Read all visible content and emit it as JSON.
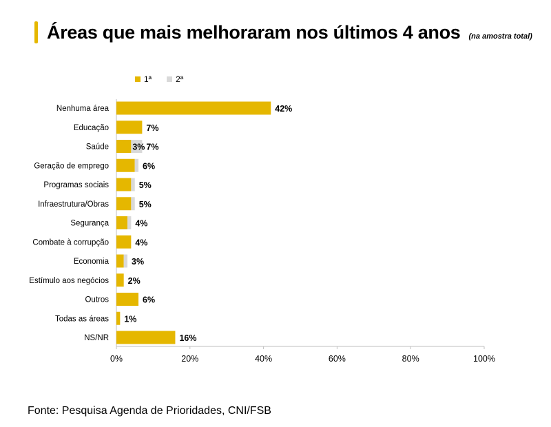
{
  "title": "Áreas que mais melhoraram nos últimos 4 anos",
  "subtitle": "(na amostra total)",
  "footer": "Fonte: Pesquisa Agenda de Prioridades, CNI/FSB",
  "colors": {
    "accent": "#e5b700",
    "primary_series": "#e5b700",
    "secondary_series": "#d9d9d9"
  },
  "chart_data": {
    "type": "bar",
    "orientation": "horizontal",
    "stacked": true,
    "categories": [
      "Nenhuma área",
      "Educação",
      "Saúde",
      "Geração de emprego",
      "Programas sociais",
      "Infraestrutura/Obras",
      "Segurança",
      "Combate à corrupção",
      "Economia",
      "Estímulo aos negócios",
      "Outros",
      "Todas as áreas",
      "NS/NR"
    ],
    "series": [
      {
        "name": "1ª",
        "color": "#e5b700",
        "values": [
          42,
          7,
          4,
          5,
          4,
          4,
          3,
          4,
          2,
          2,
          6,
          1,
          16
        ]
      },
      {
        "name": "2ª",
        "color": "#d9d9d9",
        "values": [
          0,
          0,
          3,
          1,
          1,
          1,
          1,
          0,
          1,
          0,
          0,
          0,
          0
        ]
      }
    ],
    "value_labels": [
      "42%",
      "7%",
      "7%",
      "6%",
      "5%",
      "5%",
      "4%",
      "4%",
      "3%",
      "2%",
      "6%",
      "1%",
      "16%"
    ],
    "inner_labels": [
      null,
      null,
      "3%",
      null,
      null,
      null,
      null,
      null,
      null,
      null,
      null,
      null,
      null
    ],
    "xlim": [
      0,
      100
    ],
    "x_ticks": [
      0,
      20,
      40,
      60,
      80,
      100
    ],
    "x_tick_labels": [
      "0%",
      "20%",
      "40%",
      "60%",
      "80%",
      "100%"
    ],
    "legend_position": "top-left",
    "grid": false
  }
}
